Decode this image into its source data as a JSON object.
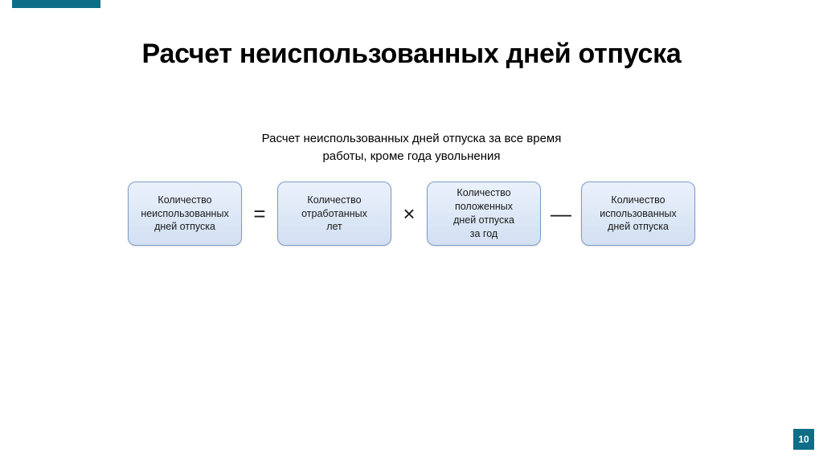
{
  "accent_color": "#0e6e87",
  "title": {
    "text": "Расчет неиспользованных дней отпуска",
    "color": "#000000"
  },
  "subtitle": {
    "line1": "Расчет неиспользованных дней отпуска за все время",
    "line2": "работы, кроме года увольнения",
    "color": "#000000"
  },
  "formula": {
    "box_style": {
      "bg_gradient_top": "#eaf1fb",
      "bg_gradient_bottom": "#d2e0f2",
      "border_color": "#7d9cc7",
      "text_color": "#1a1a1a"
    },
    "operator_color": "#1a1a1a",
    "boxes": [
      "Количество\nнеиспользованных\nдней отпуска",
      "Количество\nотработанных\nлет",
      "Количество\nположенных\nдней отпуска\nза год",
      "Количество\nиспользованных\nдней отпуска"
    ],
    "operators": [
      "=",
      "×",
      "—"
    ]
  },
  "page_number": {
    "value": "10",
    "bg_color": "#0e6e87",
    "text_color": "#ffffff"
  }
}
